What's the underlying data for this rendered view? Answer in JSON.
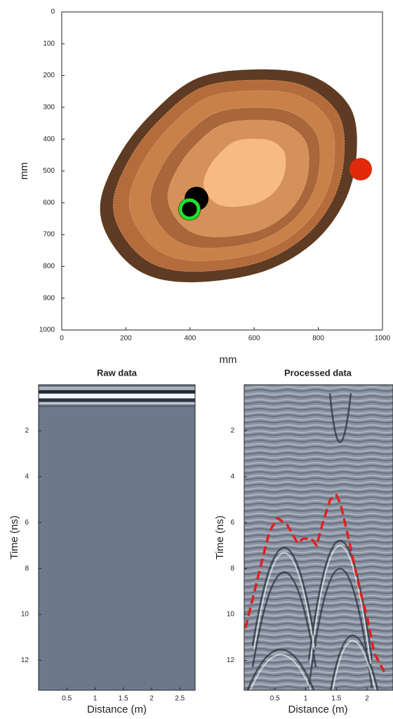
{
  "chart_data": [
    {
      "type": "map",
      "xlabel": "mm",
      "ylabel": "mm",
      "xlim": [
        0,
        1000
      ],
      "ylim": [
        0,
        1000
      ],
      "y_inverted": true,
      "xticks": [
        0,
        200,
        400,
        600,
        800,
        1000
      ],
      "yticks": [
        0,
        100,
        200,
        300,
        400,
        500,
        600,
        700,
        800,
        900,
        1000
      ]
    },
    {
      "type": "radargram",
      "title": "Raw data",
      "xlabel": "Distance (m)",
      "ylabel": "Time (ns)",
      "xlim": [
        0,
        2.77
      ],
      "ylim": [
        0,
        13.3
      ],
      "y_inverted": true,
      "xticks": [
        0.5,
        1,
        1.5,
        2,
        2.5
      ],
      "yticks": [
        2,
        4,
        6,
        8,
        10,
        12
      ]
    },
    {
      "type": "radargram",
      "title": "Processed data",
      "xlabel": "Distance (m)",
      "ylabel": "Time (ns)",
      "xlim": [
        0,
        2.4
      ],
      "ylim": [
        0,
        13.3
      ],
      "y_inverted": true,
      "xticks": [
        0.5,
        1,
        1.5,
        2
      ],
      "yticks": [
        2,
        4,
        6,
        8,
        10,
        12
      ],
      "series": [
        {
          "color": "#e02020",
          "dashed": true,
          "x": [
            0.02,
            0.23,
            0.41,
            0.54,
            0.7,
            0.87,
            0.96,
            1.09,
            1.18,
            1.28,
            1.4,
            1.5,
            1.57,
            1.7,
            1.88,
            2.0,
            2.12,
            2.28
          ],
          "values": [
            10.6,
            8.3,
            6.4,
            5.8,
            6.1,
            6.9,
            6.7,
            6.7,
            7.0,
            6.0,
            5.0,
            4.8,
            5.2,
            6.7,
            8.9,
            10.1,
            11.7,
            12.5
          ]
        }
      ]
    }
  ]
}
